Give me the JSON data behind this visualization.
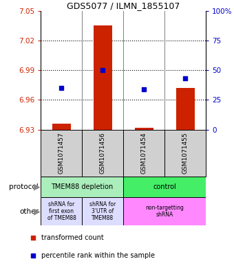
{
  "title": "GDS5077 / ILMN_1855107",
  "samples": [
    "GSM1071457",
    "GSM1071456",
    "GSM1071454",
    "GSM1071455"
  ],
  "red_values": [
    6.936,
    7.035,
    6.932,
    6.972
  ],
  "blue_values": [
    6.972,
    6.99,
    6.971,
    6.982
  ],
  "baseline": 6.93,
  "ylim": [
    6.93,
    7.05
  ],
  "yticks": [
    6.93,
    6.96,
    6.99,
    7.02,
    7.05
  ],
  "ytick_labels": [
    "6.93",
    "6.96",
    "6.99",
    "7.02",
    "7.05"
  ],
  "right_yticks": [
    0,
    25,
    50,
    75,
    100
  ],
  "right_ytick_labels": [
    "0",
    "25",
    "50",
    "75",
    "100%"
  ],
  "hlines": [
    6.96,
    6.99,
    7.02
  ],
  "red_color": "#CC2200",
  "blue_color": "#0000CC",
  "sample_bg": "#D0D0D0",
  "protocol_spans": [
    [
      0,
      2,
      "#AAEEBB",
      "TMEM88 depletion"
    ],
    [
      2,
      4,
      "#44EE66",
      "control"
    ]
  ],
  "other_spans": [
    [
      0,
      1,
      "#DDDDFF",
      "shRNA for\nfirst exon\nof TMEM88"
    ],
    [
      1,
      2,
      "#DDDDFF",
      "shRNA for\n3'UTR of\nTMEM88"
    ],
    [
      2,
      4,
      "#FF88FF",
      "non-targetting\nshRNA"
    ]
  ],
  "legend_red": "transformed count",
  "legend_blue": "percentile rank within the sample",
  "left_label_protocol": "protocol",
  "left_label_other": "other"
}
